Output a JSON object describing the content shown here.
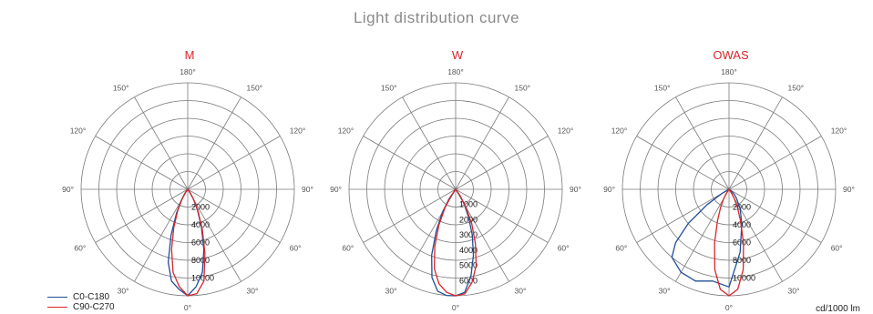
{
  "title": "Light distribution curve",
  "legend": [
    {
      "label": "C0-C180",
      "color": "#1f4e96"
    },
    {
      "label": "C90-C270",
      "color": "#d9262c"
    }
  ],
  "unit": "cd/1000 lm",
  "angle_labels": [
    "180°",
    "150°",
    "150°",
    "120°",
    "120°",
    "90°",
    "90°",
    "60°",
    "60°",
    "30°",
    "30°",
    "0°"
  ],
  "chart_data": [
    {
      "type": "polar",
      "title": "M",
      "r_ticks": [
        "2000",
        "4000",
        "6000",
        "8000",
        "10000"
      ],
      "r_max": 12000,
      "series": [
        {
          "name": "C0-C180",
          "color": "#1f4e96",
          "angles": [
            0,
            5,
            10,
            15,
            20,
            25,
            30,
            35,
            40
          ],
          "right": [
            12000,
            11000,
            9500,
            7000,
            4500,
            2600,
            1300,
            500,
            0
          ],
          "left": [
            12000,
            11300,
            10500,
            8500,
            5500,
            3000,
            1500,
            600,
            0
          ]
        },
        {
          "name": "C90-C270",
          "color": "#d9262c",
          "angles": [
            0,
            5,
            10,
            15,
            20,
            25,
            30,
            35,
            40
          ],
          "right": [
            12000,
            11800,
            10500,
            7500,
            4800,
            2800,
            1400,
            500,
            0
          ],
          "left": [
            12000,
            11000,
            9500,
            7000,
            4600,
            2700,
            1300,
            500,
            0
          ]
        }
      ]
    },
    {
      "type": "polar",
      "title": "W",
      "r_ticks": [
        "1000",
        "2000",
        "3000",
        "4000",
        "5000",
        "6000"
      ],
      "r_max": 7000,
      "series": [
        {
          "name": "C0-C180",
          "color": "#1f4e96",
          "angles": [
            0,
            5,
            10,
            15,
            20,
            25,
            30,
            35,
            40
          ],
          "right": [
            7000,
            6800,
            5800,
            4500,
            3200,
            2000,
            1100,
            400,
            0
          ],
          "left": [
            7000,
            7000,
            6800,
            6000,
            4600,
            3000,
            1700,
            700,
            0
          ]
        },
        {
          "name": "C90-C270",
          "color": "#d9262c",
          "angles": [
            0,
            5,
            10,
            15,
            20,
            25,
            30,
            35,
            40
          ],
          "right": [
            7000,
            6900,
            6200,
            5200,
            3800,
            2500,
            1300,
            500,
            0
          ],
          "left": [
            7000,
            6800,
            6300,
            5400,
            4000,
            2600,
            1400,
            500,
            0
          ]
        }
      ]
    },
    {
      "type": "polar",
      "title": "OWAS",
      "r_ticks": [
        "2000",
        "4000",
        "6000",
        "8000",
        "10000"
      ],
      "r_max": 12000,
      "series": [
        {
          "name": "C0-C180",
          "color": "#1f4e96",
          "angles": [
            0,
            10,
            20,
            30,
            40,
            45,
            50,
            55,
            60,
            65
          ],
          "right": [
            11000,
            7200,
            4200,
            2500,
            1300,
            900,
            500,
            200,
            0,
            0
          ],
          "left": [
            11000,
            10500,
            11000,
            10800,
            10000,
            8500,
            6000,
            3000,
            800,
            0
          ]
        },
        {
          "name": "C90-C270",
          "color": "#d9262c",
          "angles": [
            0,
            5,
            10,
            15,
            20,
            25,
            30,
            35,
            40
          ],
          "right": [
            12000,
            11300,
            9200,
            6300,
            3800,
            2200,
            1100,
            400,
            0
          ],
          "left": [
            12000,
            11300,
            9200,
            6300,
            3800,
            2200,
            1100,
            400,
            0
          ]
        }
      ]
    }
  ]
}
